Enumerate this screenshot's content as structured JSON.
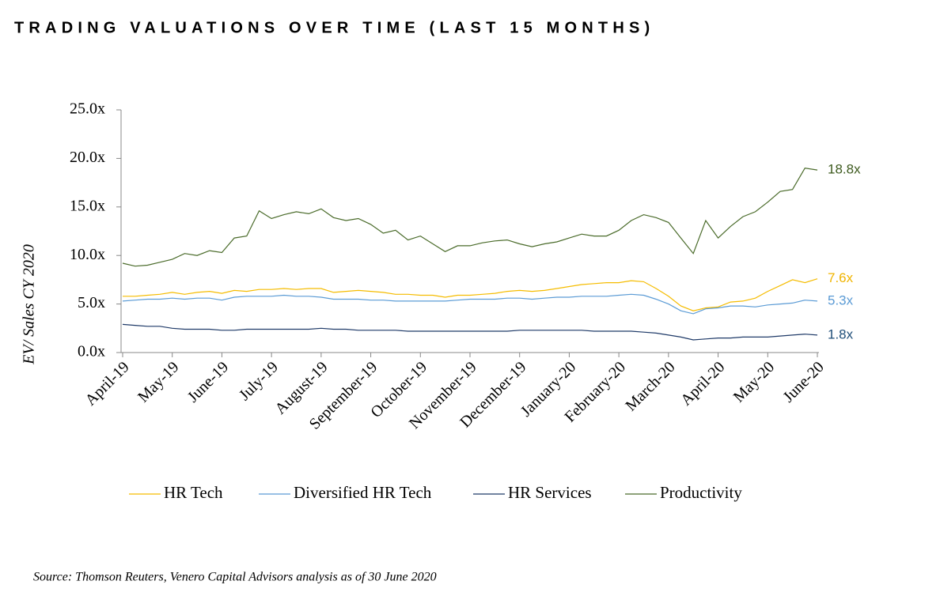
{
  "chart_data": {
    "type": "line",
    "title": "TRADING VALUATIONS OVER TIME (LAST 15 MONTHS)",
    "y_label": "EV/ Sales CY 2020",
    "source": "Source: Thomson Reuters, Venero Capital Advisors analysis as of 30 June 2020",
    "categories": [
      "April-19",
      null,
      null,
      null,
      "May-19",
      null,
      null,
      null,
      "June-19",
      null,
      null,
      null,
      "July-19",
      null,
      null,
      null,
      "August-19",
      null,
      null,
      null,
      "September-19",
      null,
      null,
      null,
      "October-19",
      null,
      null,
      null,
      "November-19",
      null,
      null,
      null,
      "December-19",
      null,
      null,
      null,
      "January-20",
      null,
      null,
      null,
      "February-20",
      null,
      null,
      null,
      "March-20",
      null,
      null,
      null,
      "April-20",
      null,
      null,
      null,
      "May-20",
      null,
      null,
      null,
      "June-20"
    ],
    "ylim": [
      0,
      25
    ],
    "yticks": [
      {
        "value": 0,
        "label": "0.0x"
      },
      {
        "value": 5,
        "label": "5.0x"
      },
      {
        "value": 10,
        "label": "10.0x"
      },
      {
        "value": 15,
        "label": "15.0x"
      },
      {
        "value": 20,
        "label": "20.0x"
      },
      {
        "value": 25,
        "label": "25.0x"
      }
    ],
    "grid": false,
    "legend": "bottom",
    "series": [
      {
        "name": "HR Tech",
        "color": "#f5bc00",
        "end_label": "7.6x",
        "end_label_color": "#f0b400",
        "values": [
          5.8,
          5.8,
          5.9,
          6.0,
          6.2,
          6.0,
          6.2,
          6.3,
          6.1,
          6.4,
          6.3,
          6.5,
          6.5,
          6.6,
          6.5,
          6.6,
          6.6,
          6.2,
          6.3,
          6.4,
          6.3,
          6.2,
          6.0,
          6.0,
          5.9,
          5.9,
          5.7,
          5.9,
          5.9,
          6.0,
          6.1,
          6.3,
          6.4,
          6.3,
          6.4,
          6.6,
          6.8,
          7.0,
          7.1,
          7.2,
          7.2,
          7.4,
          7.3,
          6.6,
          5.8,
          4.8,
          4.3,
          4.6,
          4.7,
          5.2,
          5.3,
          5.6,
          6.3,
          6.9,
          7.5,
          7.2,
          7.6
        ]
      },
      {
        "name": "Diversified HR Tech",
        "color": "#5b9bd5",
        "end_label": "5.3x",
        "end_label_color": "#5b9bd5",
        "values": [
          5.3,
          5.4,
          5.5,
          5.5,
          5.6,
          5.5,
          5.6,
          5.6,
          5.4,
          5.7,
          5.8,
          5.8,
          5.8,
          5.9,
          5.8,
          5.8,
          5.7,
          5.5,
          5.5,
          5.5,
          5.4,
          5.4,
          5.3,
          5.3,
          5.3,
          5.3,
          5.3,
          5.4,
          5.5,
          5.5,
          5.5,
          5.6,
          5.6,
          5.5,
          5.6,
          5.7,
          5.7,
          5.8,
          5.8,
          5.8,
          5.9,
          6.0,
          5.9,
          5.5,
          5.0,
          4.3,
          4.0,
          4.5,
          4.6,
          4.8,
          4.8,
          4.7,
          4.9,
          5.0,
          5.1,
          5.4,
          5.3
        ]
      },
      {
        "name": "HR Services",
        "color": "#1f3a68",
        "end_label": "1.8x",
        "end_label_color": "#1f4e79",
        "values": [
          2.9,
          2.8,
          2.7,
          2.7,
          2.5,
          2.4,
          2.4,
          2.4,
          2.3,
          2.3,
          2.4,
          2.4,
          2.4,
          2.4,
          2.4,
          2.4,
          2.5,
          2.4,
          2.4,
          2.3,
          2.3,
          2.3,
          2.3,
          2.2,
          2.2,
          2.2,
          2.2,
          2.2,
          2.2,
          2.2,
          2.2,
          2.2,
          2.3,
          2.3,
          2.3,
          2.3,
          2.3,
          2.3,
          2.2,
          2.2,
          2.2,
          2.2,
          2.1,
          2.0,
          1.8,
          1.6,
          1.3,
          1.4,
          1.5,
          1.5,
          1.6,
          1.6,
          1.6,
          1.7,
          1.8,
          1.9,
          1.8
        ]
      },
      {
        "name": "Productivity",
        "color": "#4a6b2a",
        "end_label": "18.8x",
        "end_label_color": "#3d5a1e",
        "values": [
          9.2,
          8.9,
          9.0,
          9.3,
          9.6,
          10.2,
          10.0,
          10.5,
          10.3,
          11.8,
          12.0,
          14.6,
          13.8,
          14.2,
          14.5,
          14.3,
          14.8,
          13.9,
          13.6,
          13.8,
          13.2,
          12.3,
          12.6,
          11.6,
          12.0,
          11.2,
          10.4,
          11.0,
          11.0,
          11.3,
          11.5,
          11.6,
          11.2,
          10.9,
          11.2,
          11.4,
          11.8,
          12.2,
          12.0,
          12.0,
          12.6,
          13.6,
          14.2,
          13.9,
          13.4,
          11.8,
          10.2,
          13.6,
          11.8,
          13.0,
          14.0,
          14.5,
          15.5,
          16.6,
          16.8,
          19.0,
          18.8
        ]
      }
    ]
  }
}
